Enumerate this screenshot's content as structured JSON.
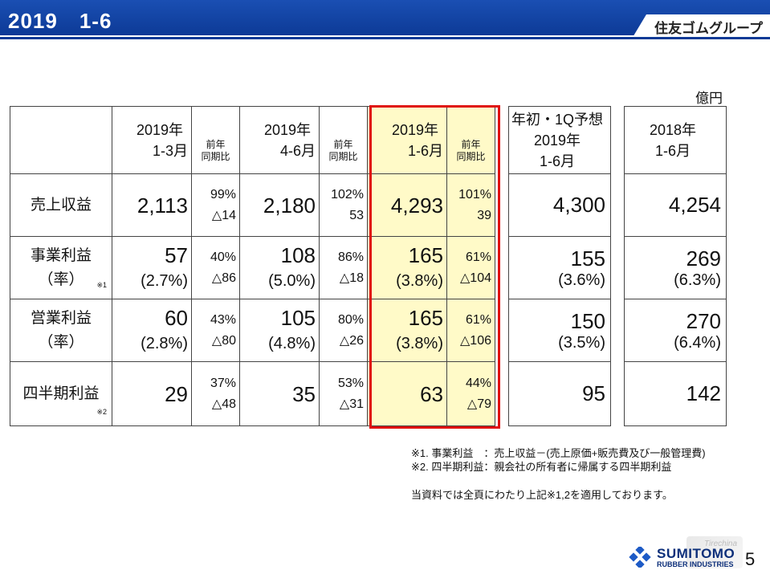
{
  "header": {
    "title": "2019　1-6",
    "group": "住友ゴムグループ"
  },
  "unit": "億円",
  "table": {
    "columns": [
      {
        "period": "2019年",
        "range": "1-3月",
        "compare": "前年\n同期比"
      },
      {
        "period": "2019年",
        "range": "4-6月",
        "compare": "前年\n同期比"
      },
      {
        "period": "2019年",
        "range": "1-6月",
        "compare": "前年\n同期比"
      }
    ],
    "forecast_header": {
      "line1": "年初・1Q予想",
      "line2": "2019年",
      "line3": "1-6月"
    },
    "prior_header": {
      "line1": "2018年",
      "line2": "1-6月"
    },
    "rows": [
      {
        "label": "売上収益",
        "label2": "",
        "note": "",
        "q1": "2,113",
        "q1_pct": "99%",
        "q1_diff": "△14",
        "q2": "2,180",
        "q2_pct": "102%",
        "q2_diff": "53",
        "h1": "4,293",
        "h1_pct": "101%",
        "h1_diff": "39",
        "forecast": "4,300",
        "forecast_rate": "",
        "prior": "4,254",
        "prior_rate": ""
      },
      {
        "label": "事業利益",
        "label2": "（率）",
        "note": "※1",
        "q1": "57",
        "q1_rate": "(2.7%)",
        "q1_pct": "40%",
        "q1_diff": "△86",
        "q2": "108",
        "q2_rate": "(5.0%)",
        "q2_pct": "86%",
        "q2_diff": "△18",
        "h1": "165",
        "h1_rate": "(3.8%)",
        "h1_pct": "61%",
        "h1_diff": "△104",
        "forecast": "155",
        "forecast_rate": "(3.6%)",
        "prior": "269",
        "prior_rate": "(6.3%)"
      },
      {
        "label": "営業利益",
        "label2": "（率）",
        "note": "",
        "q1": "60",
        "q1_rate": "(2.8%)",
        "q1_pct": "43%",
        "q1_diff": "△80",
        "q2": "105",
        "q2_rate": "(4.8%)",
        "q2_pct": "80%",
        "q2_diff": "△26",
        "h1": "165",
        "h1_rate": "(3.8%)",
        "h1_pct": "61%",
        "h1_diff": "△106",
        "forecast": "150",
        "forecast_rate": "(3.5%)",
        "prior": "270",
        "prior_rate": "(6.4%)"
      },
      {
        "label": "四半期利益",
        "label2": "",
        "note": "※2",
        "q1": "29",
        "q1_pct": "37%",
        "q1_diff": "△48",
        "q2": "35",
        "q2_pct": "53%",
        "q2_diff": "△31",
        "h1": "63",
        "h1_pct": "44%",
        "h1_diff": "△79",
        "forecast": "95",
        "forecast_rate": "",
        "prior": "142",
        "prior_rate": ""
      }
    ]
  },
  "notes": {
    "n1": "※1. 事業利益　：売上収益－(売上原価+販売費及び一般管理費)",
    "n2": "※2. 四半期利益：親会社の所有者に帰属する四半期利益",
    "n3": "当資料では全頁にわたり上記※1,2を適用しております。"
  },
  "footer": {
    "brand": "SUMITOMO",
    "brand_sub": "RUBBER INDUSTRIES",
    "page": "5",
    "watermark": "Tirechina"
  },
  "colors": {
    "header_blue": "#0d3a96",
    "highlight_fill": "#fffac8",
    "highlight_border": "#e01010"
  }
}
